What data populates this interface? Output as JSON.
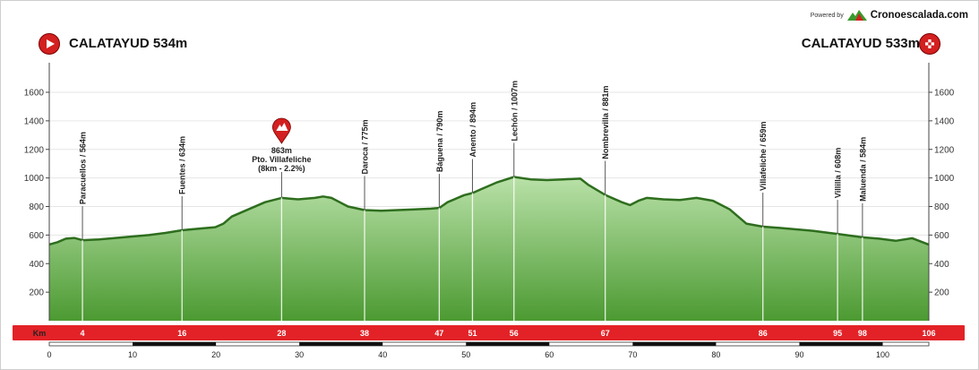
{
  "branding": {
    "powered_by": "Powered by",
    "name": "Cronoescalada.com"
  },
  "start": {
    "label": "CALATAYUD 534m",
    "icon": "play-icon"
  },
  "finish": {
    "label": "CALATAYUD 533m",
    "icon": "finish-flag-icon"
  },
  "colors": {
    "fill_top": "#b9e1a8",
    "fill_bottom": "#4c9a32",
    "outline": "#2e6e1e",
    "km_bar": "#e32227"
  },
  "climb": {
    "elevation": "863m",
    "name": "Pto. Villafeliche",
    "detail": "(8km - 2.2%)",
    "icon": "location-pin-icon"
  },
  "chart_data": {
    "type": "area",
    "ylim": [
      0,
      1600
    ],
    "xlim": [
      0,
      106
    ],
    "y_ticks": [
      200,
      400,
      600,
      800,
      1000,
      1200,
      1400,
      1600
    ],
    "scale_ticks": [
      0,
      10,
      20,
      30,
      40,
      50,
      60,
      70,
      80,
      90,
      100
    ],
    "km_label": "Km",
    "km_markers": [
      4,
      16,
      28,
      38,
      47,
      51,
      56,
      67,
      86,
      95,
      98,
      106
    ],
    "profile": {
      "x": [
        0,
        1,
        2,
        3,
        4,
        6,
        8,
        10,
        12,
        14,
        16,
        18,
        20,
        21,
        22,
        24,
        26,
        28,
        29,
        30,
        32,
        33,
        34,
        36,
        38,
        40,
        42,
        44,
        46,
        47,
        48,
        50,
        51,
        52,
        54,
        56,
        58,
        60,
        62,
        64,
        65,
        67,
        69,
        70,
        71,
        72,
        74,
        76,
        78,
        80,
        82,
        84,
        86,
        88,
        90,
        92,
        94,
        95,
        96,
        98,
        100,
        102,
        104,
        106
      ],
      "y": [
        534,
        550,
        575,
        580,
        564,
        570,
        580,
        590,
        600,
        615,
        634,
        645,
        655,
        680,
        730,
        780,
        830,
        860,
        855,
        850,
        860,
        870,
        860,
        800,
        775,
        770,
        775,
        780,
        785,
        790,
        830,
        880,
        894,
        920,
        970,
        1007,
        990,
        985,
        990,
        995,
        950,
        881,
        830,
        810,
        840,
        860,
        850,
        845,
        860,
        840,
        780,
        680,
        659,
        650,
        640,
        630,
        615,
        608,
        600,
        584,
        575,
        560,
        578,
        533
      ]
    },
    "waypoints": [
      {
        "km": 4,
        "label": "Paracuellos / 564m"
      },
      {
        "km": 16,
        "label": "Fuentes / 634m"
      },
      {
        "km": 38,
        "label": "Daroca / 775m"
      },
      {
        "km": 47,
        "label": "Báguena / 790m"
      },
      {
        "km": 51,
        "label": "Anento / 894m"
      },
      {
        "km": 56,
        "label": "Lechón / 1007m"
      },
      {
        "km": 67,
        "label": "Nombrevilla / 881m"
      },
      {
        "km": 86,
        "label": "Villafeliche / 659m"
      },
      {
        "km": 95,
        "label": "Villilla / 608m"
      },
      {
        "km": 98,
        "label": "Maluenda / 584m"
      }
    ],
    "climb_marker": {
      "km": 28,
      "elevation": 863
    }
  }
}
